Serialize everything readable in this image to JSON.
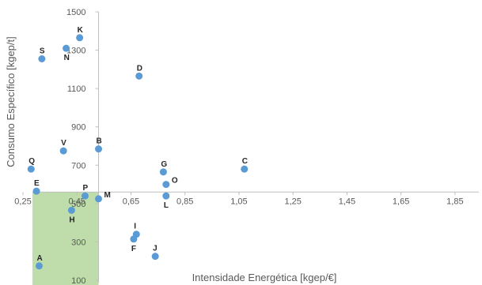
{
  "chart_data": {
    "type": "scatter",
    "xlabel": "Intensidade Energética [kgep/€]",
    "ylabel": "Consumo Específico [kgep/t]",
    "xlim": [
      0.25,
      1.95
    ],
    "ylim": [
      100,
      1500
    ],
    "x_ticks": [
      "0,25",
      "0,45",
      "0,65",
      "0,85",
      "1,05",
      "1,25",
      "1,45",
      "1,65",
      "1,85"
    ],
    "x_tick_values": [
      0.25,
      0.45,
      0.65,
      0.85,
      1.05,
      1.25,
      1.45,
      1.65,
      1.85
    ],
    "y_ticks": [
      "100",
      "300",
      "500",
      "700",
      "900",
      "1100",
      "1300",
      "1500"
    ],
    "y_tick_values": [
      100,
      300,
      500,
      700,
      900,
      1100,
      1300,
      1500
    ],
    "x_axis_crossing_y": 560,
    "y_axis_crossing_x": 0.53,
    "grid": false,
    "marker_color": "#5B9BD5",
    "highlight_region_color": "#A9D18E",
    "highlight_region": {
      "x": [
        0.25,
        0.53
      ],
      "y": [
        100,
        560
      ]
    },
    "points": [
      {
        "label": "A",
        "x": 0.31,
        "y": 175
      },
      {
        "label": "B",
        "x": 0.53,
        "y": 785
      },
      {
        "label": "C",
        "x": 1.07,
        "y": 680
      },
      {
        "label": "D",
        "x": 0.68,
        "y": 1165
      },
      {
        "label": "E",
        "x": 0.3,
        "y": 565
      },
      {
        "label": "F",
        "x": 0.66,
        "y": 315
      },
      {
        "label": "G",
        "x": 0.77,
        "y": 665
      },
      {
        "label": "H",
        "x": 0.43,
        "y": 465
      },
      {
        "label": "I",
        "x": 0.67,
        "y": 340
      },
      {
        "label": "J",
        "x": 0.74,
        "y": 225
      },
      {
        "label": "K",
        "x": 0.46,
        "y": 1365
      },
      {
        "label": "L",
        "x": 0.78,
        "y": 540
      },
      {
        "label": "M",
        "x": 0.53,
        "y": 525
      },
      {
        "label": "N",
        "x": 0.41,
        "y": 1310
      },
      {
        "label": "O",
        "x": 0.78,
        "y": 600
      },
      {
        "label": "P",
        "x": 0.48,
        "y": 540
      },
      {
        "label": "Q",
        "x": 0.28,
        "y": 680
      },
      {
        "label": "S",
        "x": 0.32,
        "y": 1255
      },
      {
        "label": "V",
        "x": 0.4,
        "y": 775
      }
    ]
  }
}
